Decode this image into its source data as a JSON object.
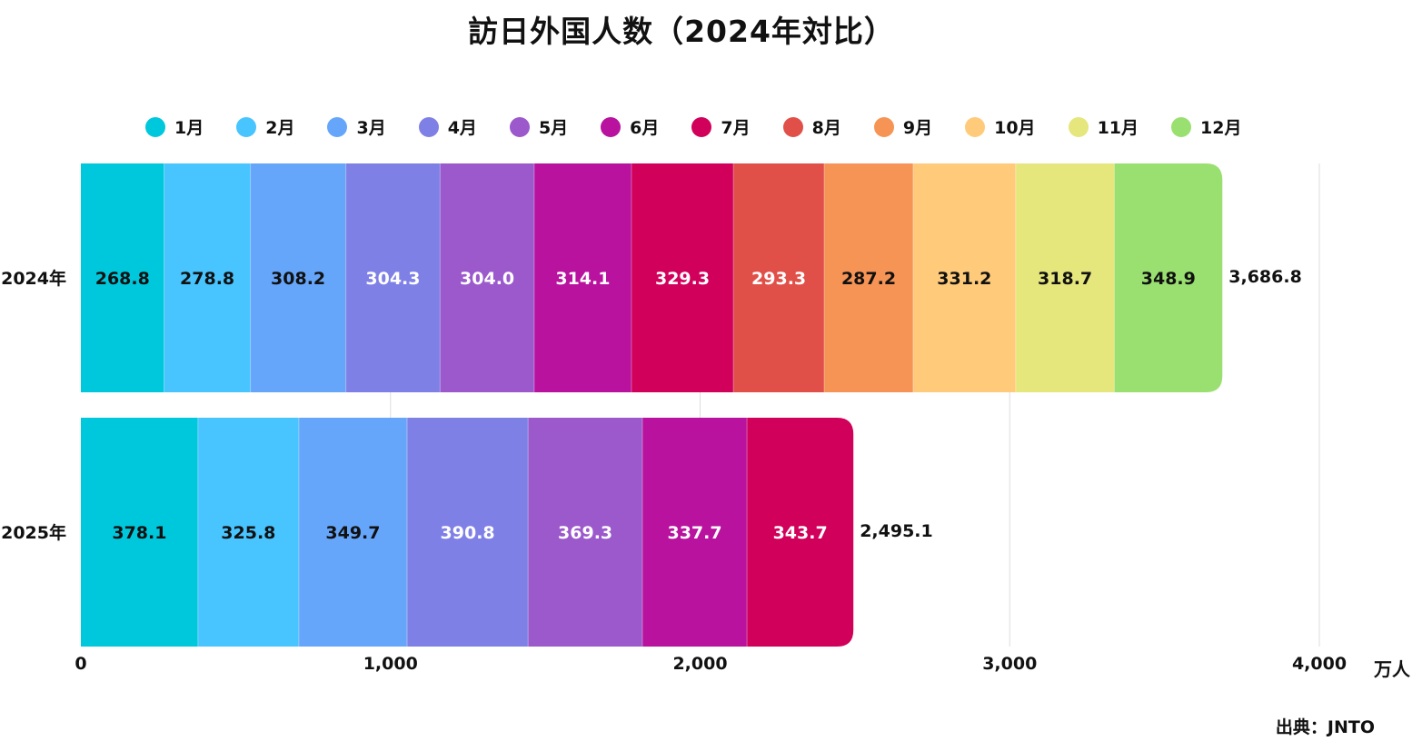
{
  "title": "訪日外国人数（2024年対比）",
  "source": "出典：JNTO",
  "unit": "万人",
  "chart_data": {
    "type": "bar",
    "orientation": "horizontal",
    "stacked": true,
    "title": "訪日外国人数（2024年対比）",
    "categories": [
      "2024年",
      "2025年"
    ],
    "xlim": [
      0,
      4000
    ],
    "xticks": [
      "0",
      "1,000",
      "2,000",
      "3,000",
      "4,000"
    ],
    "xtick_values": [
      0,
      1000,
      2000,
      3000,
      4000
    ],
    "xunit": "万人",
    "grid": true,
    "legend_position": "top",
    "series": [
      {
        "name": "1月",
        "color": "#00c8dc",
        "label_color": "#111111",
        "values": [
          268.8,
          378.1
        ]
      },
      {
        "name": "2月",
        "color": "#48c4ff",
        "label_color": "#111111",
        "values": [
          278.8,
          325.8
        ]
      },
      {
        "name": "3月",
        "color": "#66a6fa",
        "label_color": "#111111",
        "values": [
          308.2,
          349.7
        ]
      },
      {
        "name": "4月",
        "color": "#7f80e6",
        "label_color": "#ffffff",
        "values": [
          304.3,
          390.8
        ]
      },
      {
        "name": "5月",
        "color": "#9b59cc",
        "label_color": "#ffffff",
        "values": [
          304.0,
          369.3
        ]
      },
      {
        "name": "6月",
        "color": "#b8129e",
        "label_color": "#ffffff",
        "values": [
          314.1,
          337.7
        ]
      },
      {
        "name": "7月",
        "color": "#d1005a",
        "label_color": "#ffffff",
        "values": [
          329.3,
          343.7
        ]
      },
      {
        "name": "8月",
        "color": "#e05048",
        "label_color": "#ffffff",
        "values": [
          293.3,
          null
        ]
      },
      {
        "name": "9月",
        "color": "#f69455",
        "label_color": "#111111",
        "values": [
          287.2,
          null
        ]
      },
      {
        "name": "10月",
        "color": "#ffcb7a",
        "label_color": "#111111",
        "values": [
          331.2,
          null
        ]
      },
      {
        "name": "11月",
        "color": "#e5e67c",
        "label_color": "#111111",
        "values": [
          318.7,
          null
        ]
      },
      {
        "name": "12月",
        "color": "#9ae070",
        "label_color": "#111111",
        "values": [
          348.9,
          null
        ]
      }
    ],
    "totals": [
      "3,686.8",
      "2,495.1"
    ]
  }
}
